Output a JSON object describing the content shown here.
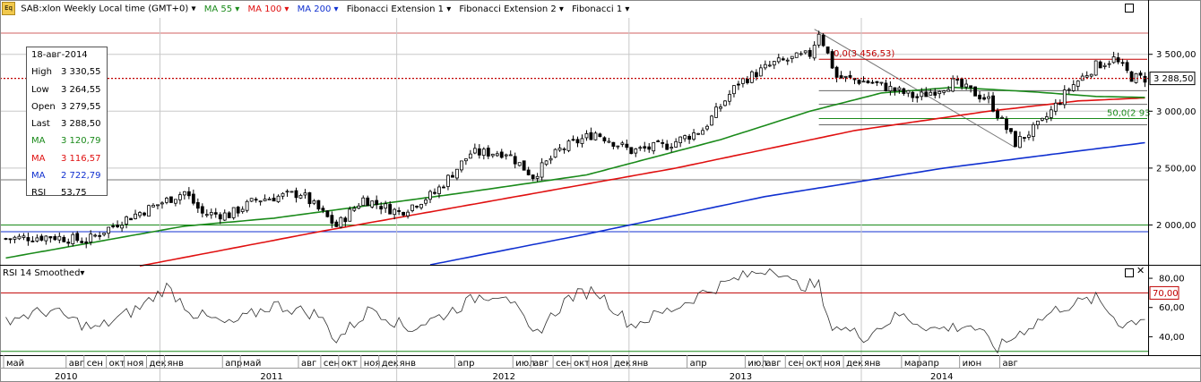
{
  "header": {
    "symbol": "SAB:xlon Weekly Local time (GMT+0)",
    "ma55": "MA 55",
    "ma100": "MA 100",
    "ma200": "MA 200",
    "fib_ext1": "Fibonacci Extension 1",
    "fib_ext2": "Fibonacci Extension 2",
    "fib1": "Fibonacci 1",
    "icon": "chart-logo-icon"
  },
  "colors": {
    "ma55": "#1a8a1a",
    "ma100": "#e01010",
    "ma200": "#1030d0",
    "price_line": "#c00000",
    "rsi_line": "#303030",
    "fib_level": "#c00000",
    "grid": "#c8c8c8"
  },
  "info_panel": {
    "date": "18-авг-2014",
    "rows": [
      {
        "label": "High",
        "value": "3 330,55",
        "color": "#000000"
      },
      {
        "label": "Low",
        "value": "3 264,55",
        "color": "#000000"
      },
      {
        "label": "Open",
        "value": "3 279,55",
        "color": "#000000"
      },
      {
        "label": "Last",
        "value": "3 288,50",
        "color": "#000000"
      },
      {
        "label": "MA",
        "value": "3 120,79",
        "color": "#1a8a1a"
      },
      {
        "label": "MA",
        "value": "3 116,57",
        "color": "#e01010"
      },
      {
        "label": "MA",
        "value": "2 722,79",
        "color": "#1030d0"
      },
      {
        "label": "RSI",
        "value": "53,75",
        "color": "#000000"
      }
    ]
  },
  "rsi_panel": {
    "title": "RSI 14 Smoothed",
    "level_label": "70,00"
  },
  "annotations": {
    "fib_top": "0,0(3 456,53)",
    "fib_mid": "50,0(2 93"
  },
  "chart_data": {
    "type": "candlestick",
    "price": {
      "ylim": [
        1650,
        3820
      ],
      "yticks": [
        2000,
        2500,
        3000,
        3500
      ],
      "ytick_labels": [
        "2 000,00",
        "2 500,00",
        "3 000,00",
        "3 500,00"
      ],
      "last_price": 3288.5,
      "last_label": "3 288,50",
      "keypoints": [
        [
          0,
          1880
        ],
        [
          10,
          1900
        ],
        [
          18,
          1860
        ],
        [
          26,
          2040
        ],
        [
          34,
          2180
        ],
        [
          40,
          2290
        ],
        [
          44,
          2100
        ],
        [
          50,
          2090
        ],
        [
          56,
          2220
        ],
        [
          66,
          2280
        ],
        [
          74,
          1990
        ],
        [
          80,
          2230
        ],
        [
          88,
          2110
        ],
        [
          96,
          2280
        ],
        [
          104,
          2630
        ],
        [
          112,
          2640
        ],
        [
          118,
          2430
        ],
        [
          124,
          2660
        ],
        [
          132,
          2810
        ],
        [
          140,
          2650
        ],
        [
          148,
          2700
        ],
        [
          156,
          2840
        ],
        [
          164,
          3250
        ],
        [
          172,
          3420
        ],
        [
          180,
          3500
        ],
        [
          182,
          3700
        ],
        [
          186,
          3300
        ],
        [
          194,
          3250
        ],
        [
          204,
          3120
        ],
        [
          212,
          3250
        ],
        [
          220,
          3100
        ],
        [
          226,
          2720
        ],
        [
          232,
          2900
        ],
        [
          238,
          3200
        ],
        [
          244,
          3400
        ],
        [
          248,
          3460
        ],
        [
          252,
          3300
        ],
        [
          255,
          3288
        ]
      ],
      "ma55": [
        [
          0,
          1710
        ],
        [
          40,
          1990
        ],
        [
          60,
          2060
        ],
        [
          100,
          2270
        ],
        [
          130,
          2440
        ],
        [
          160,
          2750
        ],
        [
          180,
          3000
        ],
        [
          196,
          3160
        ],
        [
          212,
          3210
        ],
        [
          230,
          3170
        ],
        [
          244,
          3130
        ],
        [
          255,
          3121
        ]
      ],
      "ma100": [
        [
          30,
          1640
        ],
        [
          70,
          1940
        ],
        [
          110,
          2220
        ],
        [
          150,
          2500
        ],
        [
          190,
          2830
        ],
        [
          220,
          3000
        ],
        [
          240,
          3090
        ],
        [
          255,
          3117
        ]
      ],
      "ma200": [
        [
          95,
          1650
        ],
        [
          130,
          1920
        ],
        [
          170,
          2250
        ],
        [
          210,
          2500
        ],
        [
          240,
          2650
        ],
        [
          255,
          2723
        ]
      ]
    },
    "rsi": {
      "ylim": [
        28,
        88
      ],
      "yticks": [
        40,
        60,
        80
      ],
      "ytick_labels": [
        "40,00",
        "60,00",
        "80,00"
      ],
      "levels": [
        70,
        30
      ],
      "last": 53.75,
      "keypoints": [
        [
          0,
          52
        ],
        [
          10,
          58
        ],
        [
          20,
          45
        ],
        [
          30,
          60
        ],
        [
          36,
          74
        ],
        [
          42,
          56
        ],
        [
          50,
          48
        ],
        [
          60,
          62
        ],
        [
          70,
          55
        ],
        [
          74,
          38
        ],
        [
          82,
          60
        ],
        [
          90,
          45
        ],
        [
          98,
          55
        ],
        [
          106,
          68
        ],
        [
          112,
          70
        ],
        [
          118,
          40
        ],
        [
          126,
          67
        ],
        [
          132,
          72
        ],
        [
          140,
          48
        ],
        [
          150,
          60
        ],
        [
          156,
          70
        ],
        [
          164,
          80
        ],
        [
          172,
          88
        ],
        [
          176,
          76
        ],
        [
          182,
          75
        ],
        [
          184,
          50
        ],
        [
          192,
          40
        ],
        [
          200,
          55
        ],
        [
          208,
          45
        ],
        [
          216,
          48
        ],
        [
          222,
          32
        ],
        [
          228,
          45
        ],
        [
          236,
          60
        ],
        [
          244,
          66
        ],
        [
          250,
          48
        ],
        [
          255,
          54
        ]
      ]
    },
    "x_axis": {
      "months": [
        {
          "label": "май",
          "x": 0
        },
        {
          "label": "авг",
          "x": 14
        },
        {
          "label": "сен",
          "x": 18
        },
        {
          "label": "окт",
          "x": 23
        },
        {
          "label": "ноя",
          "x": 27
        },
        {
          "label": "дек",
          "x": 32
        },
        {
          "label": "янв",
          "x": 36
        },
        {
          "label": "апр",
          "x": 49
        },
        {
          "label": "май",
          "x": 53
        },
        {
          "label": "авг",
          "x": 66
        },
        {
          "label": "сен",
          "x": 71
        },
        {
          "label": "окт",
          "x": 75
        },
        {
          "label": "ноя",
          "x": 80
        },
        {
          "label": "дек",
          "x": 84
        },
        {
          "label": "янв",
          "x": 88
        },
        {
          "label": "апр",
          "x": 101
        },
        {
          "label": "июл",
          "x": 114
        },
        {
          "label": "авг",
          "x": 118
        },
        {
          "label": "сен",
          "x": 123
        },
        {
          "label": "окт",
          "x": 127
        },
        {
          "label": "ноя",
          "x": 131
        },
        {
          "label": "дек",
          "x": 136
        },
        {
          "label": "янв",
          "x": 140
        },
        {
          "label": "апр",
          "x": 153
        },
        {
          "label": "июл",
          "x": 166
        },
        {
          "label": "авг",
          "x": 170
        },
        {
          "label": "сен",
          "x": 175
        },
        {
          "label": "окт",
          "x": 179
        },
        {
          "label": "ноя",
          "x": 183
        },
        {
          "label": "дек",
          "x": 188
        },
        {
          "label": "янв",
          "x": 192
        },
        {
          "label": "мар",
          "x": 201
        },
        {
          "label": "апр",
          "x": 205
        },
        {
          "label": "июн",
          "x": 214
        },
        {
          "label": "авг",
          "x": 223
        }
      ],
      "years": [
        {
          "label": "2010",
          "x": 14
        },
        {
          "label": "2011",
          "x": 60
        },
        {
          "label": "2012",
          "x": 112
        },
        {
          "label": "2013",
          "x": 165
        },
        {
          "label": "2014",
          "x": 210
        }
      ],
      "year_boundaries": [
        35,
        88,
        140,
        192
      ]
    }
  }
}
